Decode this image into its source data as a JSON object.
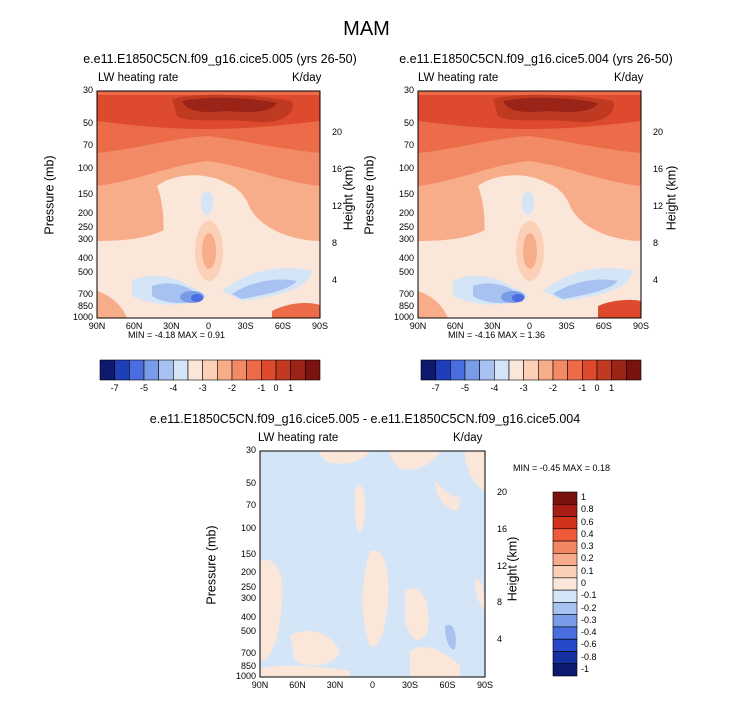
{
  "title": "MAM",
  "panels": [
    {
      "title": "e.e11.E1850C5CN.f09_g16.cice5.005 (yrs 26-50)",
      "left_label": "LW heating rate",
      "right_label": "K/day",
      "ylabel": "Pressure (mb)",
      "ylabel_right": "Height (km)",
      "stats": "MIN =  -4.18  MAX =   0.91"
    },
    {
      "title": "e.e11.E1850C5CN.f09_g16.cice5.004 (yrs 26-50)",
      "left_label": "LW heating rate",
      "right_label": "K/day",
      "ylabel": "Pressure (mb)",
      "ylabel_right": "Height (km)",
      "stats": "MIN =  -4.16  MAX =   1.36"
    },
    {
      "title": "e.e11.E1850C5CN.f09_g16.cice5.005 - e.e11.E1850C5CN.f09_g16.cice5.004",
      "left_label": "LW heating rate",
      "right_label": "K/day",
      "ylabel": "Pressure (mb)",
      "ylabel_right": "Height (km)",
      "stats": "MIN =  -0.45  MAX =   0.18"
    }
  ],
  "chart_data": [
    {
      "type": "heatmap",
      "title": "e.e11.E1850C5CN.f09_g16.cice5.005 (yrs 26-50)",
      "xlabel": "",
      "ylabel": "Pressure (mb)",
      "y2label": "Height (km)",
      "x_ticks": [
        "90N",
        "60N",
        "30N",
        "0",
        "30S",
        "60S",
        "90S"
      ],
      "x_ticks_deg": [
        90,
        60,
        30,
        0,
        -30,
        -60,
        -90
      ],
      "y_ticks": [
        "30",
        "50",
        "70",
        "100",
        "150",
        "200",
        "250",
        "300",
        "400",
        "500",
        "700",
        "850",
        "1000"
      ],
      "y_ticks_mb": [
        30,
        50,
        70,
        100,
        150,
        200,
        250,
        300,
        400,
        500,
        700,
        850,
        1000
      ],
      "y2_ticks": [
        "20",
        "16",
        "12",
        "8",
        "4"
      ],
      "y2_ticks_km": [
        20,
        16,
        12,
        8,
        4
      ],
      "xlim": [
        90,
        -90
      ],
      "ylim": [
        1000,
        30
      ],
      "colorbar_labels": [
        "-7",
        "-5",
        "-4",
        "-3",
        "-2",
        "-1",
        "0",
        "1"
      ],
      "min": -4.18,
      "max": 0.91
    },
    {
      "type": "heatmap",
      "title": "e.e11.E1850C5CN.f09_g16.cice5.004 (yrs 26-50)",
      "xlabel": "",
      "ylabel": "Pressure (mb)",
      "y2label": "Height (km)",
      "x_ticks": [
        "90N",
        "60N",
        "30N",
        "0",
        "30S",
        "60S",
        "90S"
      ],
      "x_ticks_deg": [
        90,
        60,
        30,
        0,
        -30,
        -60,
        -90
      ],
      "y_ticks": [
        "30",
        "50",
        "70",
        "100",
        "150",
        "200",
        "250",
        "300",
        "400",
        "500",
        "700",
        "850",
        "1000"
      ],
      "y_ticks_mb": [
        30,
        50,
        70,
        100,
        150,
        200,
        250,
        300,
        400,
        500,
        700,
        850,
        1000
      ],
      "y2_ticks": [
        "20",
        "16",
        "12",
        "8",
        "4"
      ],
      "y2_ticks_km": [
        20,
        16,
        12,
        8,
        4
      ],
      "xlim": [
        90,
        -90
      ],
      "ylim": [
        1000,
        30
      ],
      "colorbar_labels": [
        "-7",
        "-5",
        "-4",
        "-3",
        "-2",
        "-1",
        "0",
        "1"
      ],
      "min": -4.16,
      "max": 1.36
    },
    {
      "type": "heatmap",
      "title": "e.e11.E1850C5CN.f09_g16.cice5.005 - e.e11.E1850C5CN.f09_g16.cice5.004",
      "xlabel": "",
      "ylabel": "Pressure (mb)",
      "y2label": "Height (km)",
      "x_ticks": [
        "90N",
        "60N",
        "30N",
        "0",
        "30S",
        "60S",
        "90S"
      ],
      "x_ticks_deg": [
        90,
        60,
        30,
        0,
        -30,
        -60,
        -90
      ],
      "y_ticks": [
        "30",
        "50",
        "70",
        "100",
        "150",
        "200",
        "250",
        "300",
        "400",
        "500",
        "700",
        "850",
        "1000"
      ],
      "y_ticks_mb": [
        30,
        50,
        70,
        100,
        150,
        200,
        250,
        300,
        400,
        500,
        700,
        850,
        1000
      ],
      "y2_ticks": [
        "20",
        "16",
        "12",
        "8",
        "4"
      ],
      "y2_ticks_km": [
        20,
        16,
        12,
        8,
        4
      ],
      "xlim": [
        90,
        -90
      ],
      "ylim": [
        1000,
        30
      ],
      "colorbar_labels": [
        "1",
        "0.8",
        "0.6",
        "0.4",
        "0.3",
        "0.2",
        "0.1",
        "0",
        "-0.1",
        "-0.2",
        "-0.3",
        "-0.4",
        "-0.6",
        "-0.8",
        "-1"
      ],
      "min": -0.45,
      "max": 0.18
    }
  ],
  "colors": {
    "abs_scale": [
      "#0d1a6e",
      "#1f3fb8",
      "#4a6ee0",
      "#7a9ce8",
      "#a7c1f0",
      "#d4e5f8",
      "#fbe7da",
      "#fbd0b6",
      "#f7ad8a",
      "#f28a66",
      "#ec6b48",
      "#dd4a2d",
      "#c03a22",
      "#9a2417",
      "#7a1310"
    ],
    "diff_scale": [
      "#7a1310",
      "#a81e14",
      "#d1321c",
      "#ee5a3a",
      "#f48562",
      "#f7ab8c",
      "#fbd0b6",
      "#fbe7da",
      "#d4e5f8",
      "#a7c1f0",
      "#7a9ce8",
      "#4a6ee0",
      "#2547c8",
      "#1530a0",
      "#0d1a6e"
    ]
  }
}
